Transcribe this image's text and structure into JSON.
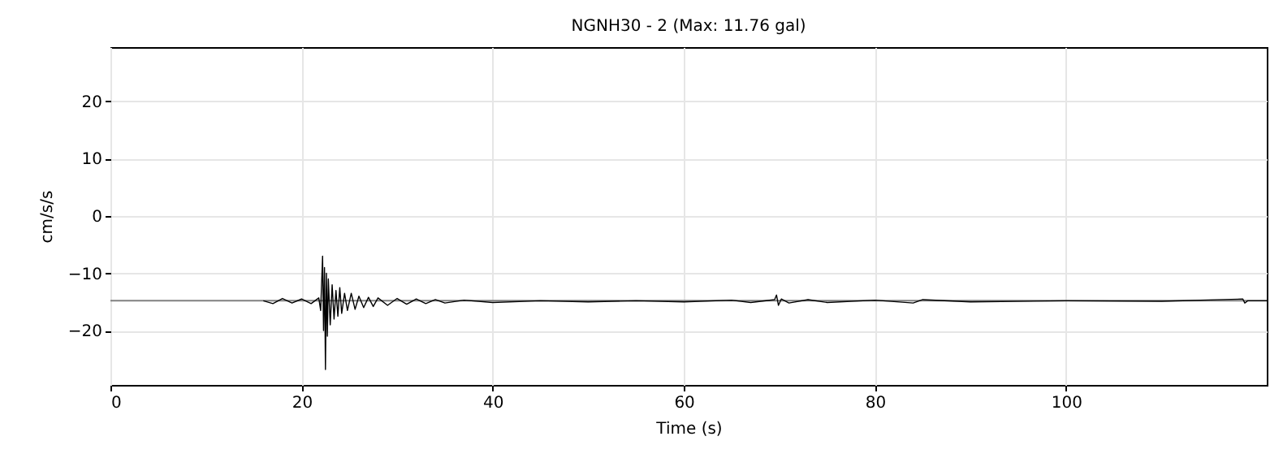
{
  "chart_data": {
    "type": "line",
    "title": "NGNH30 - 2 (Max: 11.76 gal)",
    "xlabel": "Time (s)",
    "ylabel": "cm/s/s",
    "xlim": [
      0,
      121
    ],
    "ylim": [
      -29.5,
      29.5
    ],
    "xticks": [
      0,
      20,
      40,
      60,
      80,
      100
    ],
    "yticks": [
      {
        "value": -20,
        "label": "−20"
      },
      {
        "value": -10,
        "label": "−10"
      },
      0,
      10,
      20
    ],
    "grid": true,
    "marker": "none",
    "line_style": "solid",
    "ref_lines": [
      {
        "axis": "y",
        "value": -14.8,
        "label": null,
        "color": "#808080"
      }
    ],
    "series": [
      {
        "color": "#000000",
        "x": [
          16,
          17,
          18,
          19,
          20,
          21,
          21.8,
          22.0,
          22.2,
          22.3,
          22.4,
          22.5,
          22.6,
          22.7,
          22.8,
          23.0,
          23.2,
          23.4,
          23.6,
          23.8,
          24.0,
          24.2,
          24.5,
          24.8,
          25.2,
          25.6,
          26,
          26.5,
          27,
          27.5,
          28,
          29,
          30,
          31,
          32,
          33,
          34,
          35,
          37,
          40,
          45,
          50,
          55,
          60,
          65,
          67,
          69.5,
          69.7,
          69.9,
          70.2,
          71,
          73,
          75,
          80,
          84,
          85,
          90,
          100,
          110,
          118.5,
          118.7,
          119,
          121
        ],
        "values": [
          -14.8,
          -15.3,
          -14.4,
          -15.2,
          -14.5,
          -15.3,
          -14.3,
          -16.5,
          -7,
          -20,
          -9,
          -26.8,
          -10,
          -21,
          -11,
          -19,
          -12,
          -18,
          -13,
          -17.5,
          -12.5,
          -17,
          -13.5,
          -16.5,
          -13.5,
          -16.3,
          -14,
          -16,
          -14.2,
          -15.8,
          -14.3,
          -15.6,
          -14.4,
          -15.4,
          -14.5,
          -15.3,
          -14.6,
          -15.2,
          -14.7,
          -15.1,
          -14.8,
          -15,
          -14.8,
          -15,
          -14.7,
          -15.1,
          -14.6,
          -13.8,
          -15.6,
          -14.5,
          -15.2,
          -14.6,
          -15.1,
          -14.7,
          -15.2,
          -14.6,
          -15,
          -14.8,
          -14.9,
          -14.5,
          -15.2,
          -14.8,
          -14.8
        ]
      }
    ]
  }
}
